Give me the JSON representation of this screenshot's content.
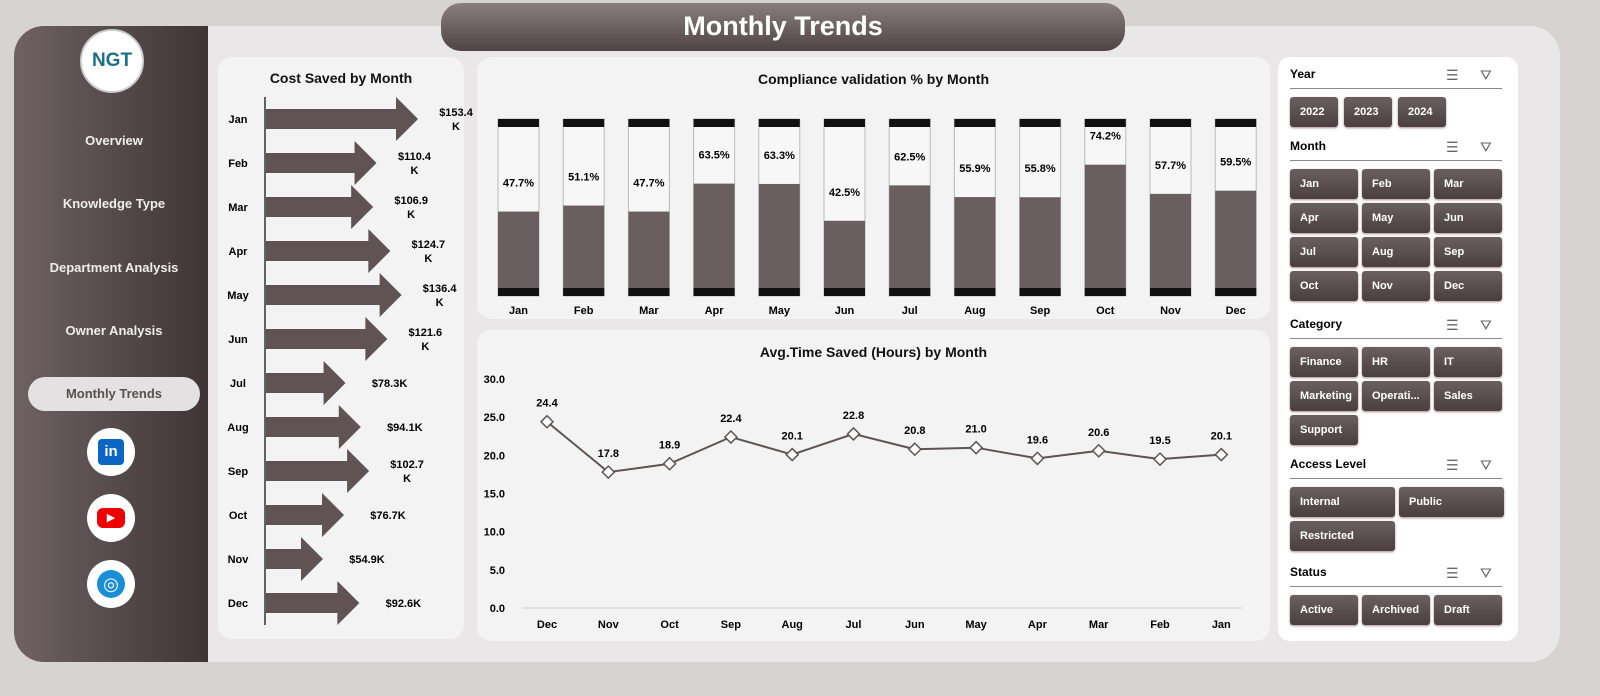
{
  "title": "Monthly Trends",
  "logo": "NGT",
  "nav": [
    "Overview",
    "Knowledge Type",
    "Department Analysis",
    "Owner Analysis",
    "Monthly Trends"
  ],
  "active_nav": "Monthly Trends",
  "social": [
    "linkedin-icon",
    "youtube-icon",
    "globe-icon"
  ],
  "colors": {
    "brand": "#5a4f50",
    "accent_dark": "#3f3536"
  },
  "chart_data": [
    {
      "type": "bar",
      "orientation": "horizontal",
      "title": "Cost Saved by Month",
      "categories": [
        "Jan",
        "Feb",
        "Mar",
        "Apr",
        "May",
        "Jun",
        "Jul",
        "Aug",
        "Sep",
        "Oct",
        "Nov",
        "Dec"
      ],
      "values": [
        153.4,
        110.4,
        106.9,
        124.7,
        136.4,
        121.6,
        78.3,
        94.1,
        102.7,
        76.7,
        54.9,
        92.6
      ],
      "labels": [
        "$153.4 K",
        "$110.4 K",
        "$106.9 K",
        "$124.7 K",
        "$136.4 K",
        "$121.6 K",
        "$78.3K",
        "$94.1K",
        "$102.7 K",
        "$76.7K",
        "$54.9K",
        "$92.6K"
      ],
      "unit": "$K"
    },
    {
      "type": "bar",
      "title": "Compliance validation % by Month",
      "categories": [
        "Jan",
        "Feb",
        "Mar",
        "Apr",
        "May",
        "Jun",
        "Jul",
        "Aug",
        "Sep",
        "Oct",
        "Nov",
        "Dec"
      ],
      "values": [
        47.7,
        51.1,
        47.7,
        63.5,
        63.3,
        42.5,
        62.5,
        55.9,
        55.8,
        74.2,
        57.7,
        59.5
      ],
      "ylim": [
        0,
        100
      ]
    },
    {
      "type": "line",
      "title": "Avg.Time Saved (Hours) by Month",
      "categories": [
        "Dec",
        "Nov",
        "Oct",
        "Sep",
        "Aug",
        "Jul",
        "Jun",
        "May",
        "Apr",
        "Mar",
        "Feb",
        "Jan"
      ],
      "values": [
        24.4,
        17.8,
        18.9,
        22.4,
        20.1,
        22.8,
        20.8,
        21.0,
        19.6,
        20.6,
        19.5,
        20.1
      ],
      "ylim": [
        0,
        30
      ],
      "yticks": [
        "0.0",
        "5.0",
        "10.0",
        "15.0",
        "20.0",
        "25.0",
        "30.0"
      ]
    }
  ],
  "slicers": [
    {
      "label": "Year",
      "items": [
        "2022",
        "2023",
        "2024"
      ]
    },
    {
      "label": "Month",
      "items": [
        "Jan",
        "Feb",
        "Mar",
        "Apr",
        "May",
        "Jun",
        "Jul",
        "Aug",
        "Sep",
        "Oct",
        "Nov",
        "Dec"
      ]
    },
    {
      "label": "Category",
      "items": [
        "Finance",
        "HR",
        "IT",
        "Marketing",
        "Operati...",
        "Sales",
        "Support"
      ]
    },
    {
      "label": "Access Level",
      "items": [
        "Internal",
        "Public",
        "Restricted"
      ]
    },
    {
      "label": "Status",
      "items": [
        "Active",
        "Archived",
        "Draft"
      ]
    }
  ]
}
